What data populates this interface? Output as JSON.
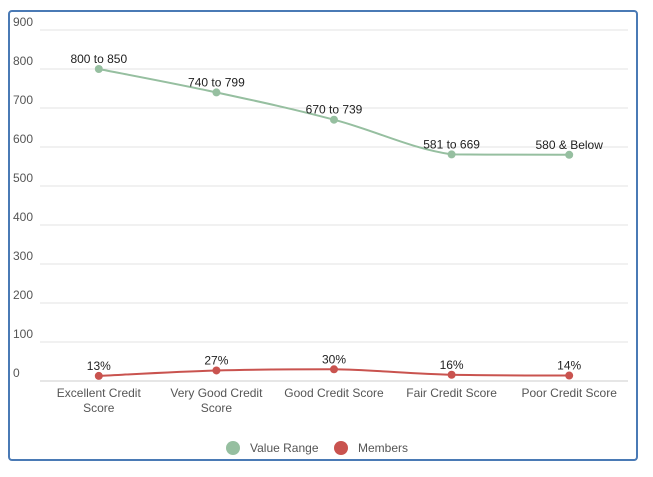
{
  "chart_data": {
    "type": "line",
    "title": "",
    "xlabel": "",
    "ylabel": "",
    "ylim": [
      0,
      900
    ],
    "yticks": [
      0,
      100,
      200,
      300,
      400,
      500,
      600,
      700,
      800,
      900
    ],
    "grid": true,
    "legend_position": "bottom",
    "categories": [
      [
        "Excellent Credit",
        "Score"
      ],
      [
        "Very Good Credit",
        "Score"
      ],
      [
        "Good Credit Score"
      ],
      [
        "Fair Credit Score"
      ],
      [
        "Poor Credit Score"
      ]
    ],
    "series": [
      {
        "name": "Value Range",
        "color": "#96bfa0",
        "values": [
          800,
          740,
          670,
          581,
          580
        ],
        "labels": [
          "800 to 850",
          "740 to 799",
          "670 to 739",
          "581 to 669",
          "580 & Below"
        ]
      },
      {
        "name": "Members",
        "color": "#c9534f",
        "values": [
          13,
          27,
          30,
          16,
          14
        ],
        "labels": [
          "13%",
          "27%",
          "30%",
          "16%",
          "14%"
        ]
      }
    ]
  }
}
